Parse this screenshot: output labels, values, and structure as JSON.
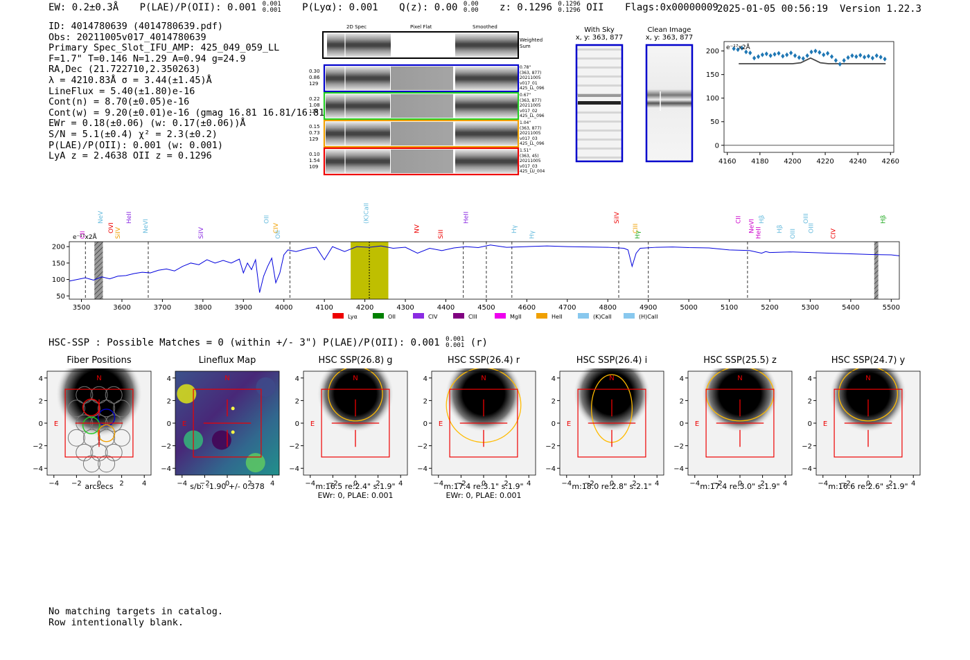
{
  "header": {
    "ew": "EW: 0.2±0.3Å",
    "plae": "P(LAE)/P(OII): 0.001",
    "plae_sup": "0.001",
    "plae_sub": "0.001",
    "plya": "P(Lyα): 0.001",
    "qz": "Q(z): 0.00",
    "qz_sup": "0.00",
    "qz_sub": "0.00",
    "z": "z: 0.1296",
    "z_sup": "0.1296",
    "z_sub": "0.1296",
    "z_type": "OII",
    "flags": "Flags:0x00000009",
    "datetime": "2025-01-05 00:56:19",
    "version": "Version 1.22.3"
  },
  "props": [
    "ID: 4014780639 (4014780639.pdf)",
    "Obs: 20211005v017_4014780639",
    "Primary Spec_Slot_IFU_AMP: 425_049_059_LL",
    "F=1.7\"  T=0.146  N=1.29  A=0.94  g=24.9",
    "RA,Dec (21.722710,2.350263)",
    "λ = 4210.83Å  σ = 3.44(±1.45)Å",
    "LineFlux = 5.40(±1.80)e-16",
    "Cont(n) = 8.70(±0.05)e-16",
    "Cont(w) = 9.20(±0.01)e-16 (gmag 16.81 16.81/16.81)",
    "EWr = 0.18(±0.06) (w: 0.17(±0.06))Å",
    "S/N = 5.1(±0.4)  χ² = 2.3(±0.2)",
    "P(LAE)/P(OII): 0.001 (w: 0.001)",
    "LyA z = 2.4638  OII z = 0.1296"
  ],
  "cutouts": {
    "col_titles": [
      "2D Spec",
      "Pixel Flat",
      "Smoothed"
    ],
    "weighted_sum": "Weighted Sum",
    "rows": [
      {
        "stats": [
          "0.30",
          "0.86",
          "129"
        ],
        "info": [
          "0.78\"",
          "(363, 877)",
          "20211005",
          "v017_01",
          "425_LL_096"
        ],
        "color": "#0000cc"
      },
      {
        "stats": [
          "0.22",
          "1.08",
          "129"
        ],
        "info": [
          "0.67\"",
          "(363, 877)",
          "20211005",
          "v017_02",
          "425_LL_096"
        ],
        "color": "#22cc22"
      },
      {
        "stats": [
          "0.15",
          "0.73",
          "129"
        ],
        "info": [
          "1.04\"",
          "(363, 877)",
          "20211005",
          "v017_03",
          "425_LL_096"
        ],
        "color": "#f0a000"
      },
      {
        "stats": [
          "0.10",
          "1.54",
          "109"
        ],
        "info": [
          "1.51\"",
          "(363, 45)",
          "20211005",
          "v017_03",
          "425_LU_004"
        ],
        "color": "#ee0000"
      }
    ]
  },
  "sky_panels": {
    "with_sky_title": "With Sky",
    "with_sky_coords": "x, y: 363, 877",
    "clean_title": "Clean Image",
    "clean_coords": "x, y: 363, 877"
  },
  "chart_data": [
    {
      "type": "scatter",
      "title": "",
      "unit_label": "e⁻¹⁷x2Å",
      "xlim": [
        4158,
        4262
      ],
      "ylim": [
        -15,
        220
      ],
      "xticks": [
        4160,
        4180,
        4200,
        4220,
        4240,
        4260
      ],
      "yticks": [
        0,
        50,
        100,
        150,
        200
      ],
      "x": [
        4164,
        4166.5,
        4169,
        4171.5,
        4174,
        4176.5,
        4179,
        4181.5,
        4184,
        4186.5,
        4189,
        4191.5,
        4194,
        4196.5,
        4199,
        4201.5,
        4204,
        4206.5,
        4209,
        4211.5,
        4214,
        4216.5,
        4219,
        4221.5,
        4224,
        4226.5,
        4229,
        4231.5,
        4234,
        4236.5,
        4239,
        4241.5,
        4244,
        4246.5,
        4249,
        4251.5,
        4254,
        4256.5
      ],
      "y": [
        205,
        203,
        206,
        198,
        196,
        185,
        188,
        192,
        194,
        190,
        193,
        195,
        189,
        192,
        196,
        190,
        186,
        184,
        190,
        198,
        200,
        197,
        192,
        195,
        188,
        180,
        172,
        180,
        186,
        190,
        188,
        191,
        187,
        189,
        185,
        190,
        187,
        183
      ],
      "model_x": [
        4167,
        4195,
        4200,
        4205,
        4208,
        4211,
        4214,
        4217,
        4222,
        4257
      ],
      "model_y": [
        173,
        173,
        173,
        175,
        180,
        185,
        180,
        175,
        173,
        173
      ]
    },
    {
      "type": "line",
      "xlabel": "",
      "unit_label": "e⁻¹⁷x2Å",
      "xlim": [
        3470,
        5520
      ],
      "ylim": [
        40,
        215
      ],
      "xticks": [
        3500,
        3600,
        3700,
        3800,
        3900,
        4000,
        4100,
        4200,
        4300,
        4400,
        4500,
        4600,
        4700,
        4800,
        4900,
        5000,
        5100,
        5200,
        5300,
        5400,
        5500
      ],
      "yticks": [
        50,
        100,
        150,
        200
      ],
      "x": [
        3470,
        3490,
        3510,
        3530,
        3550,
        3570,
        3590,
        3610,
        3630,
        3650,
        3670,
        3690,
        3710,
        3730,
        3750,
        3770,
        3790,
        3810,
        3830,
        3850,
        3870,
        3890,
        3900,
        3910,
        3920,
        3930,
        3940,
        3950,
        3960,
        3970,
        3980,
        3990,
        4000,
        4010,
        4030,
        4060,
        4080,
        4100,
        4120,
        4150,
        4180,
        4210,
        4240,
        4270,
        4300,
        4330,
        4360,
        4390,
        4420,
        4450,
        4480,
        4510,
        4550,
        4600,
        4650,
        4700,
        4750,
        4800,
        4840,
        4850,
        4860,
        4870,
        4880,
        4920,
        4960,
        5000,
        5050,
        5100,
        5150,
        5180,
        5190,
        5200,
        5250,
        5300,
        5350,
        5400,
        5450,
        5500,
        5520
      ],
      "y": [
        95,
        100,
        105,
        98,
        108,
        102,
        110,
        112,
        118,
        122,
        120,
        128,
        132,
        126,
        140,
        150,
        145,
        160,
        150,
        158,
        150,
        162,
        120,
        150,
        130,
        160,
        60,
        110,
        140,
        165,
        90,
        120,
        175,
        190,
        185,
        195,
        198,
        160,
        200,
        185,
        200,
        198,
        202,
        195,
        198,
        180,
        195,
        188,
        196,
        200,
        197,
        205,
        198,
        200,
        202,
        200,
        199,
        198,
        195,
        190,
        140,
        180,
        195,
        198,
        199,
        197,
        196,
        190,
        188,
        180,
        185,
        182,
        184,
        182,
        180,
        178,
        176,
        175,
        172
      ],
      "highlight_range": [
        4165,
        4258
      ],
      "dashed_lines": [
        3510,
        3665,
        4015,
        4443,
        4500,
        4563,
        4827,
        4900,
        5145
      ],
      "dotted_line": 4211,
      "hatched_ranges": [
        [
          3532,
          3553
        ],
        [
          5458,
          5468
        ]
      ],
      "line_labels": [
        {
          "x": 3508,
          "label": "CII",
          "color": "#cc00cc"
        },
        {
          "x": 3552,
          "label": "NeV",
          "color": "#66bbdd"
        },
        {
          "x": 3578,
          "label": "OVI",
          "color": "#ee0000"
        },
        {
          "x": 3595,
          "label": "SiIV",
          "color": "#f0a000"
        },
        {
          "x": 3622,
          "label": "HeII",
          "color": "#8a2be2"
        },
        {
          "x": 3663,
          "label": "NeVI",
          "color": "#66bbdd"
        },
        {
          "x": 3800,
          "label": "SiIV",
          "color": "#8a2be2"
        },
        {
          "x": 3962,
          "label": "OII",
          "color": "#66bbdd"
        },
        {
          "x": 3985,
          "label": "CIV",
          "color": "#f0a000"
        },
        {
          "x": 3990,
          "label": "OII",
          "color": "#66bbdd"
        },
        {
          "x": 4208,
          "label": "(K)CaII",
          "color": "#66bbdd"
        },
        {
          "x": 4333,
          "label": "NV",
          "color": "#ee0000"
        },
        {
          "x": 4392,
          "label": "SiII",
          "color": "#ee0000"
        },
        {
          "x": 4455,
          "label": "HeII",
          "color": "#8a2be2"
        },
        {
          "x": 4574,
          "label": "Hγ",
          "color": "#66bbdd"
        },
        {
          "x": 4617,
          "label": "Hγ",
          "color": "#66bbdd"
        },
        {
          "x": 4827,
          "label": "SiIV",
          "color": "#ee0000"
        },
        {
          "x": 4873,
          "label": "CIII",
          "color": "#f0a000"
        },
        {
          "x": 4878,
          "label": "Hγ",
          "color": "#22aa22"
        },
        {
          "x": 5127,
          "label": "CII",
          "color": "#cc00cc"
        },
        {
          "x": 5160,
          "label": "NeVI",
          "color": "#cc00cc"
        },
        {
          "x": 5177,
          "label": "HeII",
          "color": "#cc00cc"
        },
        {
          "x": 5185,
          "label": "Hβ",
          "color": "#66bbdd"
        },
        {
          "x": 5229,
          "label": "Hβ",
          "color": "#66bbdd"
        },
        {
          "x": 5262,
          "label": "OIII",
          "color": "#66bbdd"
        },
        {
          "x": 5294,
          "label": "OIII",
          "color": "#66bbdd"
        },
        {
          "x": 5307,
          "label": "OIII",
          "color": "#66bbdd"
        },
        {
          "x": 5362,
          "label": "CIV",
          "color": "#ee0000"
        },
        {
          "x": 5485,
          "label": "Hβ",
          "color": "#22aa22"
        }
      ],
      "legend": [
        {
          "label": "Lyα",
          "color": "#ee0000"
        },
        {
          "label": "OII",
          "color": "#008000"
        },
        {
          "label": "CIV",
          "color": "#8a2be2"
        },
        {
          "label": "CIII",
          "color": "#800080"
        },
        {
          "label": "MgII",
          "color": "#ee00ee"
        },
        {
          "label": "HeII",
          "color": "#f0a000"
        },
        {
          "label": "(K)CaII",
          "color": "#88c8ee"
        },
        {
          "label": "(H)CaII",
          "color": "#88c8ee"
        }
      ]
    }
  ],
  "hsc": {
    "summary": "HSC-SSP : Possible Matches = 0 (within +/- 3\")  P(LAE)/P(OII): 0.001",
    "summary_sup": "0.001",
    "summary_sub": "0.001",
    "summary_tail": "(r)",
    "axis_ticks": [
      "4",
      "2",
      "0",
      "−2",
      "−4"
    ],
    "x_ticks": [
      "−4",
      "−2",
      "0",
      "2",
      "4"
    ],
    "panels": [
      {
        "title": "Fiber Positions",
        "sub1": "arcsecs",
        "sub2": "",
        "label_n": "N",
        "label_e": "E"
      },
      {
        "title": "Lineflux Map",
        "sub1": "s/b: -1.90 +/- 0.378",
        "sub2": "",
        "label_n": "N",
        "label_e": "E"
      },
      {
        "title": "HSC SSP(26.8) g",
        "sub1": "m:16.5  re:2.4\"  s:1.9\"",
        "sub2": "EWr: 0, PLAE: 0.001",
        "label_n": "N",
        "label_e": "E"
      },
      {
        "title": "HSC SSP(26.4) r",
        "sub1": "m:17.4  re:3.1\"  s:1.9\"",
        "sub2": "EWr: 0, PLAE: 0.001",
        "label_n": "N",
        "label_e": "E"
      },
      {
        "title": "HSC SSP(26.4) i",
        "sub1": "m:18.0  re:2.8\"  s:2.1\"",
        "sub2": "",
        "label_n": "N",
        "label_e": "E"
      },
      {
        "title": "HSC SSP(25.5) z",
        "sub1": "m:17.4  re:3.0\"  s:1.9\"",
        "sub2": "",
        "label_n": "N",
        "label_e": "E"
      },
      {
        "title": "HSC SSP(24.7) y",
        "sub1": "m:16.6  re:2.6\"  s:1.9\"",
        "sub2": "",
        "label_n": "N",
        "label_e": "E"
      }
    ]
  },
  "footer": {
    "line1": "No matching targets in catalog.",
    "line2": "Row intentionally blank."
  }
}
